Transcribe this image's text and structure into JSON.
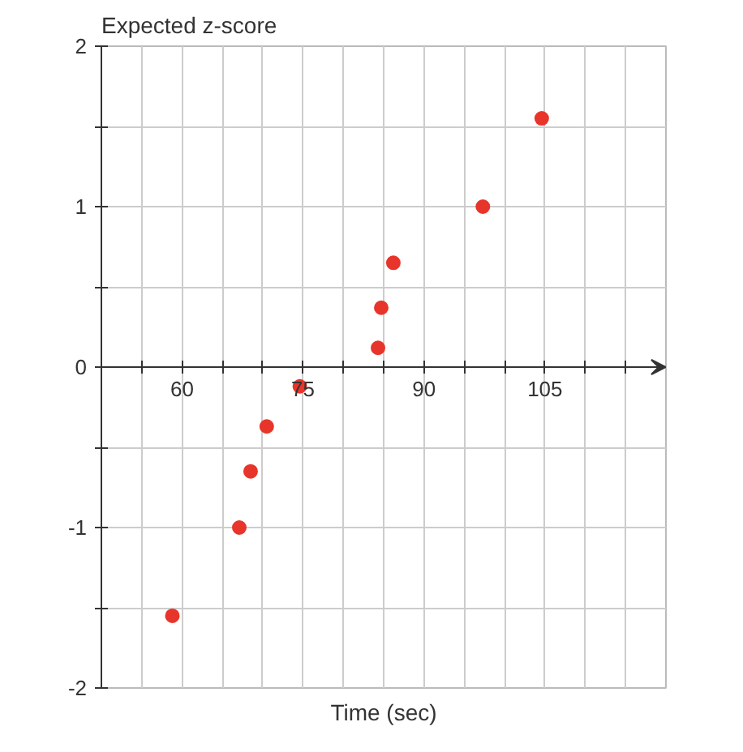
{
  "chart_data": {
    "type": "scatter",
    "xlabel": "Time (sec)",
    "ylabel": "Expected z-score",
    "x": [
      58.8,
      67.1,
      68.5,
      70.5,
      74.6,
      84.3,
      84.7,
      86.2,
      97.3,
      104.6
    ],
    "series": [
      {
        "color": "#e8352b",
        "values": [
          -1.55,
          -1.0,
          -0.65,
          -0.37,
          -0.12,
          0.12,
          0.37,
          0.65,
          1.0,
          1.55
        ]
      }
    ],
    "xlim": [
      50,
      120
    ],
    "ylim": [
      -2,
      2
    ],
    "xticks": [
      {
        "value": 55,
        "label": null
      },
      60,
      {
        "value": 65,
        "label": null
      },
      {
        "value": 70,
        "label": null
      },
      75,
      {
        "value": 80,
        "label": null
      },
      {
        "value": 85,
        "label": null
      },
      90,
      {
        "value": 95,
        "label": null
      },
      {
        "value": 100,
        "label": null
      },
      105,
      {
        "value": 110,
        "label": null
      },
      {
        "value": 115,
        "label": null
      }
    ],
    "yticks": [
      -2,
      {
        "value": -1.5,
        "label": null
      },
      -1,
      {
        "value": -0.5,
        "label": null
      },
      0,
      {
        "value": 0.5,
        "label": null
      },
      1,
      {
        "value": 1.5,
        "label": null
      },
      2
    ],
    "grid": true,
    "marker": "circle"
  }
}
